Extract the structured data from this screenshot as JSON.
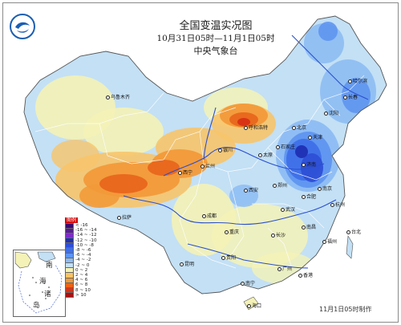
{
  "header": {
    "title": "全国变温实况图",
    "period": "10月31日05时—11月1日05时",
    "agency": "中央气象台"
  },
  "legend": {
    "title": "图例",
    "items": [
      {
        "label": "< -16",
        "color": "#3b0a6e"
      },
      {
        "label": "-16 ~ -14",
        "color": "#5a1a9a"
      },
      {
        "label": "-14 ~ -12",
        "color": "#7e2fbf"
      },
      {
        "label": "-12 ~ -10",
        "color": "#1f2fb3"
      },
      {
        "label": "-10 ~ -8",
        "color": "#2e4fd6"
      },
      {
        "label": "-8 ~ -6",
        "color": "#3f6fe8"
      },
      {
        "label": "-6 ~ -4",
        "color": "#5f95ef"
      },
      {
        "label": "-4 ~ -2",
        "color": "#8dbcf3"
      },
      {
        "label": "-2 ~ 0",
        "color": "#c3e0f5"
      },
      {
        "label": "0 ~ 2",
        "color": "#f4f2b6"
      },
      {
        "label": "2 ~ 4",
        "color": "#f7c46a"
      },
      {
        "label": "4 ~ 6",
        "color": "#f29a3a"
      },
      {
        "label": "6 ~ 8",
        "color": "#e8661c"
      },
      {
        "label": "8 ~ 10",
        "color": "#d93316"
      },
      {
        "label": "> 10",
        "color": "#b00e0e"
      }
    ]
  },
  "inset": {
    "label_nan": "南",
    "label_hai": "海",
    "label_zhu": "诸",
    "label_dao": "岛"
  },
  "cities": {
    "urumqi": "乌鲁木齐",
    "hohhot": "呼和浩特",
    "yinchuan": "银川",
    "taiyuan": "太原",
    "shijiazhuang": "石家庄",
    "beijing": "北京",
    "tianjin": "天津",
    "jinan": "济南",
    "zhengzhou": "郑州",
    "xian": "西安",
    "lanzhou": "兰州",
    "xining": "西宁",
    "harbin": "哈尔滨",
    "changchun": "长春",
    "shenyang": "沈阳",
    "chengdu": "成都",
    "chongqing": "重庆",
    "wuhan": "武汉",
    "hefei": "合肥",
    "nanjing": "南京",
    "hangzhou": "杭州",
    "changsha": "长沙",
    "nanchang": "南昌",
    "fuzhou": "福州",
    "guiyang": "贵阳",
    "kunming": "昆明",
    "nanning": "南宁",
    "lhasa": "拉萨",
    "guangzhou": "广州",
    "haikou": "海口",
    "taipei": "台北",
    "xianggang": "香港"
  },
  "footer": "11月1日05时制作",
  "colors": {
    "frame": "#8a8a8a",
    "river": "#2a4fd0",
    "border": "#ffffff",
    "ocean": "#ffffff"
  }
}
